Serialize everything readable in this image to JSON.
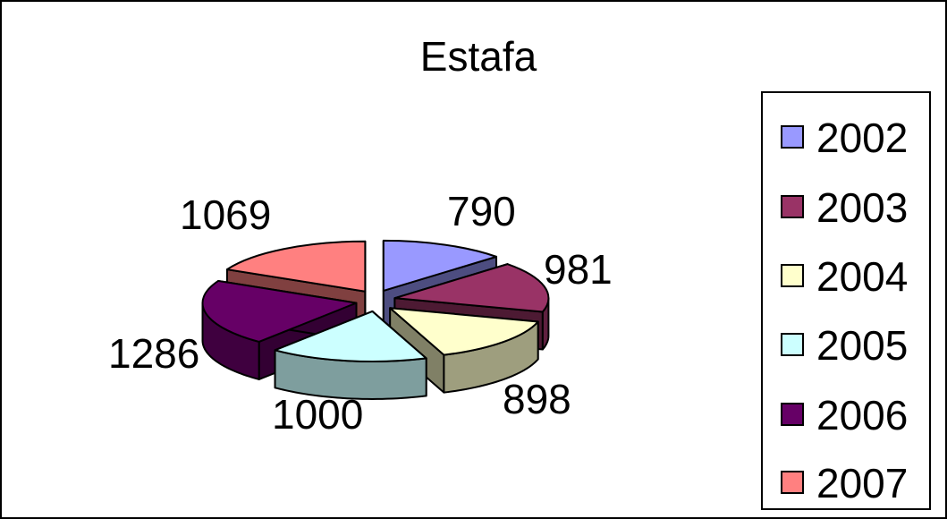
{
  "chart_data": {
    "type": "pie",
    "title": "Estafa",
    "categories": [
      "2002",
      "2003",
      "2004",
      "2005",
      "2006",
      "2007"
    ],
    "values": [
      790,
      981,
      898,
      1000,
      1286,
      1069
    ],
    "colors": [
      "#9999FF",
      "#993366",
      "#FFFFCC",
      "#CCFFFF",
      "#660066",
      "#FF8080"
    ],
    "exploded": true,
    "perspective": "3d",
    "legend_position": "right"
  }
}
